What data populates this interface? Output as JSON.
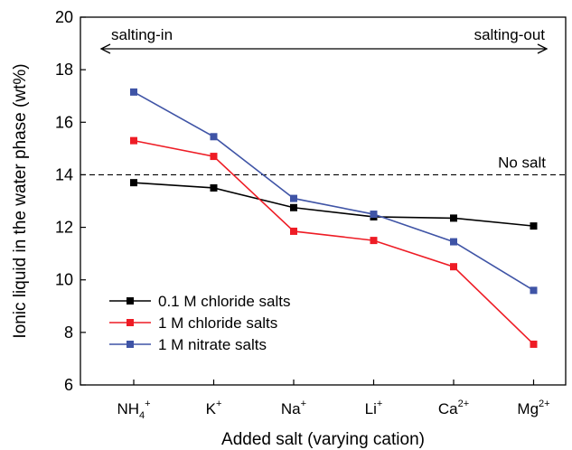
{
  "chart_data": {
    "type": "line",
    "xlabel": "Added salt (varying cation)",
    "ylabel": "Ionic liquid in the water phase (wt%)",
    "ylim": [
      6,
      20
    ],
    "yticks": [
      6,
      8,
      10,
      12,
      14,
      16,
      18,
      20
    ],
    "grid": false,
    "legend_position": "bottom-left",
    "categories": [
      {
        "base": "NH",
        "sub": "4",
        "sup": "+"
      },
      {
        "base": "K",
        "sub": "",
        "sup": "+"
      },
      {
        "base": "Na",
        "sub": "",
        "sup": "+"
      },
      {
        "base": "Li",
        "sub": "",
        "sup": "+"
      },
      {
        "base": "Ca",
        "sub": "",
        "sup": "2+"
      },
      {
        "base": "Mg",
        "sub": "",
        "sup": "2+"
      }
    ],
    "series": [
      {
        "name": "0.1 M chloride salts",
        "color": "#000000",
        "values": [
          13.7,
          13.5,
          12.75,
          12.4,
          12.35,
          12.05
        ]
      },
      {
        "name": "1 M chloride salts",
        "color": "#ee1c25",
        "values": [
          15.3,
          14.7,
          11.85,
          11.5,
          10.5,
          7.55
        ]
      },
      {
        "name": "1 M nitrate salts",
        "color": "#3f54a6",
        "values": [
          17.15,
          15.45,
          13.1,
          12.5,
          11.45,
          9.6
        ]
      }
    ],
    "reference_line": {
      "value": 14,
      "label": "No salt"
    },
    "annotations": {
      "left_label": "salting-in",
      "right_label": "salting-out"
    }
  }
}
